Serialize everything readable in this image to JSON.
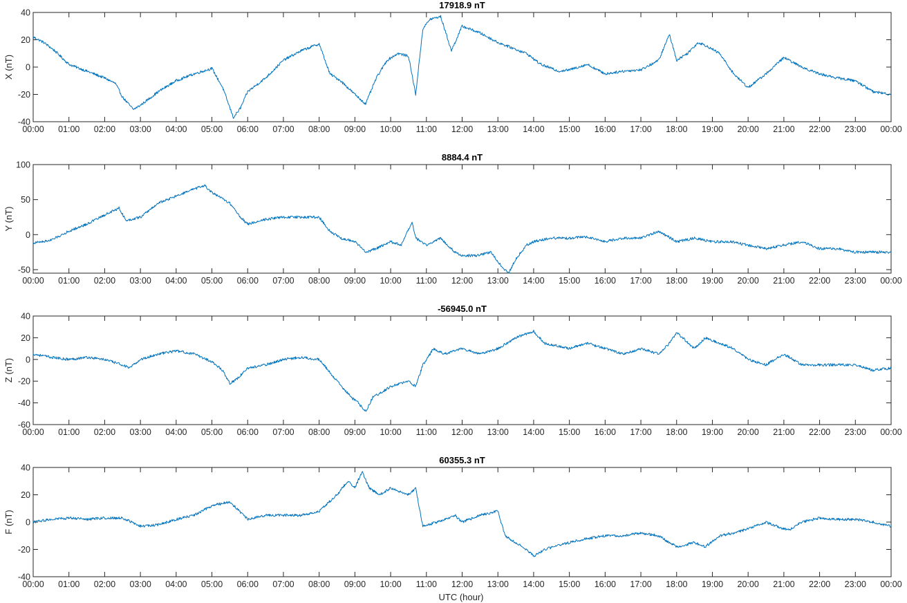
{
  "figure": {
    "xlabel": "UTC (hour)",
    "line_color": "#0072bd",
    "x_tick_labels": [
      "00:00",
      "01:00",
      "02:00",
      "03:00",
      "04:00",
      "05:00",
      "06:00",
      "07:00",
      "08:00",
      "09:00",
      "10:00",
      "11:00",
      "12:00",
      "13:00",
      "14:00",
      "15:00",
      "16:00",
      "17:00",
      "18:00",
      "19:00",
      "20:00",
      "21:00",
      "22:00",
      "23:00",
      "00:00"
    ]
  },
  "chart_data": [
    {
      "type": "line",
      "title": "17918.9 nT",
      "ylabel": "X (nT)",
      "xlim": [
        0,
        24
      ],
      "ylim": [
        -40,
        40
      ],
      "yticks": [
        -40,
        -20,
        0,
        20,
        40
      ],
      "grid": false,
      "x": [
        0,
        0.3,
        0.6,
        1.0,
        1.5,
        2.0,
        2.3,
        2.5,
        2.8,
        3.0,
        3.5,
        4.0,
        4.5,
        5.0,
        5.3,
        5.6,
        5.8,
        6.0,
        6.5,
        7.0,
        7.5,
        8.0,
        8.3,
        8.6,
        9.0,
        9.3,
        9.6,
        9.9,
        10.2,
        10.5,
        10.7,
        10.9,
        11.1,
        11.4,
        11.7,
        12.0,
        12.5,
        13.0,
        13.4,
        13.8,
        14.2,
        14.7,
        15.0,
        15.5,
        16.0,
        16.5,
        17.0,
        17.5,
        17.8,
        18.0,
        18.3,
        18.6,
        18.8,
        19.2,
        19.6,
        20.0,
        20.5,
        21.0,
        21.5,
        22.0,
        22.5,
        23.0,
        23.5,
        24.0
      ],
      "y": [
        22,
        18,
        12,
        2,
        -3,
        -8,
        -12,
        -22,
        -31,
        -28,
        -18,
        -10,
        -5,
        -1,
        -15,
        -37,
        -30,
        -18,
        -8,
        5,
        12,
        17,
        -5,
        -10,
        -20,
        -27,
        -8,
        5,
        10,
        8,
        -20,
        28,
        35,
        37,
        12,
        30,
        25,
        18,
        14,
        10,
        2,
        -3,
        -2,
        2,
        -5,
        -3,
        -2,
        5,
        24,
        5,
        10,
        18,
        16,
        10,
        -5,
        -15,
        -5,
        7,
        0,
        -5,
        -8,
        -10,
        -18,
        -20
      ]
    },
    {
      "type": "line",
      "title": "8884.4 nT",
      "ylabel": "Y (nT)",
      "xlim": [
        0,
        24
      ],
      "ylim": [
        -55,
        100
      ],
      "yticks": [
        -50,
        0,
        50,
        100
      ],
      "grid": false,
      "x": [
        0,
        0.5,
        1.0,
        1.5,
        2.0,
        2.4,
        2.6,
        3.0,
        3.5,
        4.0,
        4.5,
        4.8,
        5.0,
        5.5,
        5.8,
        6.0,
        6.5,
        7.0,
        7.5,
        8.0,
        8.3,
        8.6,
        9.0,
        9.3,
        9.6,
        10.0,
        10.3,
        10.6,
        10.7,
        11.0,
        11.4,
        11.8,
        12.0,
        12.4,
        12.8,
        13.1,
        13.3,
        13.5,
        13.8,
        14.0,
        14.5,
        15.0,
        15.5,
        16.0,
        16.5,
        17.0,
        17.5,
        18.0,
        18.5,
        19.0,
        19.5,
        20.0,
        20.5,
        21.0,
        21.5,
        22.0,
        22.5,
        23.0,
        23.5,
        24.0
      ],
      "y": [
        -12,
        -8,
        5,
        15,
        28,
        38,
        20,
        25,
        45,
        55,
        65,
        70,
        60,
        45,
        25,
        15,
        22,
        25,
        25,
        25,
        5,
        -5,
        -10,
        -25,
        -20,
        -10,
        -15,
        18,
        -5,
        -15,
        -5,
        -25,
        -30,
        -30,
        -25,
        -45,
        -55,
        -35,
        -15,
        -10,
        -5,
        -5,
        -3,
        -10,
        -5,
        -5,
        5,
        -10,
        -5,
        -10,
        -10,
        -15,
        -20,
        -15,
        -10,
        -20,
        -20,
        -25,
        -25,
        -25
      ]
    },
    {
      "type": "line",
      "title": "-56945.0 nT",
      "ylabel": "Z (nT)",
      "xlim": [
        0,
        24
      ],
      "ylim": [
        -60,
        40
      ],
      "yticks": [
        -60,
        -40,
        -20,
        0,
        20,
        40
      ],
      "grid": false,
      "x": [
        0,
        0.5,
        1.0,
        1.5,
        2.0,
        2.5,
        2.7,
        3.0,
        3.5,
        4.0,
        4.5,
        5.0,
        5.3,
        5.5,
        5.7,
        6.0,
        6.5,
        7.0,
        7.5,
        8.0,
        8.5,
        8.9,
        9.1,
        9.3,
        9.5,
        10.0,
        10.5,
        10.7,
        10.9,
        11.2,
        11.5,
        12.0,
        12.5,
        13.0,
        13.5,
        14.0,
        14.3,
        15.0,
        15.5,
        16.0,
        16.5,
        17.0,
        17.5,
        17.8,
        18.0,
        18.5,
        18.8,
        19.2,
        19.6,
        20.0,
        20.5,
        21.0,
        21.5,
        22.0,
        22.5,
        23.0,
        23.5,
        24.0
      ],
      "y": [
        5,
        2,
        0,
        2,
        0,
        -5,
        -8,
        0,
        5,
        8,
        5,
        -2,
        -10,
        -22,
        -18,
        -8,
        -5,
        0,
        2,
        0,
        -20,
        -35,
        -40,
        -48,
        -35,
        -25,
        -20,
        -25,
        -5,
        10,
        5,
        10,
        5,
        10,
        20,
        26,
        15,
        10,
        15,
        10,
        5,
        10,
        5,
        15,
        25,
        10,
        20,
        15,
        10,
        0,
        -5,
        5,
        -5,
        -5,
        -5,
        -5,
        -10,
        -8
      ]
    },
    {
      "type": "line",
      "title": "60355.3 nT",
      "ylabel": "F (nT)",
      "xlim": [
        0,
        24
      ],
      "ylim": [
        -40,
        40
      ],
      "yticks": [
        -40,
        -20,
        0,
        20,
        40
      ],
      "grid": false,
      "x": [
        0,
        0.5,
        1.0,
        1.5,
        2.0,
        2.5,
        3.0,
        3.5,
        4.0,
        4.5,
        5.0,
        5.5,
        6.0,
        6.5,
        7.0,
        7.5,
        8.0,
        8.5,
        8.8,
        9.0,
        9.2,
        9.4,
        9.7,
        10.0,
        10.5,
        10.7,
        10.9,
        11.3,
        11.8,
        12.0,
        12.5,
        13.0,
        13.2,
        13.5,
        13.8,
        14.0,
        14.3,
        15.0,
        15.5,
        16.0,
        16.5,
        17.0,
        17.5,
        17.8,
        18.0,
        18.5,
        18.8,
        19.2,
        19.6,
        20.0,
        20.5,
        21.0,
        21.2,
        21.5,
        22.0,
        22.5,
        23.0,
        23.5,
        24.0
      ],
      "y": [
        0,
        2,
        3,
        2,
        3,
        3,
        -3,
        -2,
        2,
        5,
        12,
        15,
        2,
        5,
        5,
        5,
        8,
        20,
        30,
        25,
        37,
        25,
        20,
        25,
        20,
        25,
        -3,
        0,
        5,
        0,
        5,
        8,
        -10,
        -15,
        -20,
        -25,
        -20,
        -15,
        -12,
        -10,
        -10,
        -8,
        -10,
        -15,
        -18,
        -15,
        -18,
        -10,
        -8,
        -5,
        0,
        -5,
        -5,
        0,
        3,
        2,
        2,
        0,
        -3
      ]
    }
  ]
}
